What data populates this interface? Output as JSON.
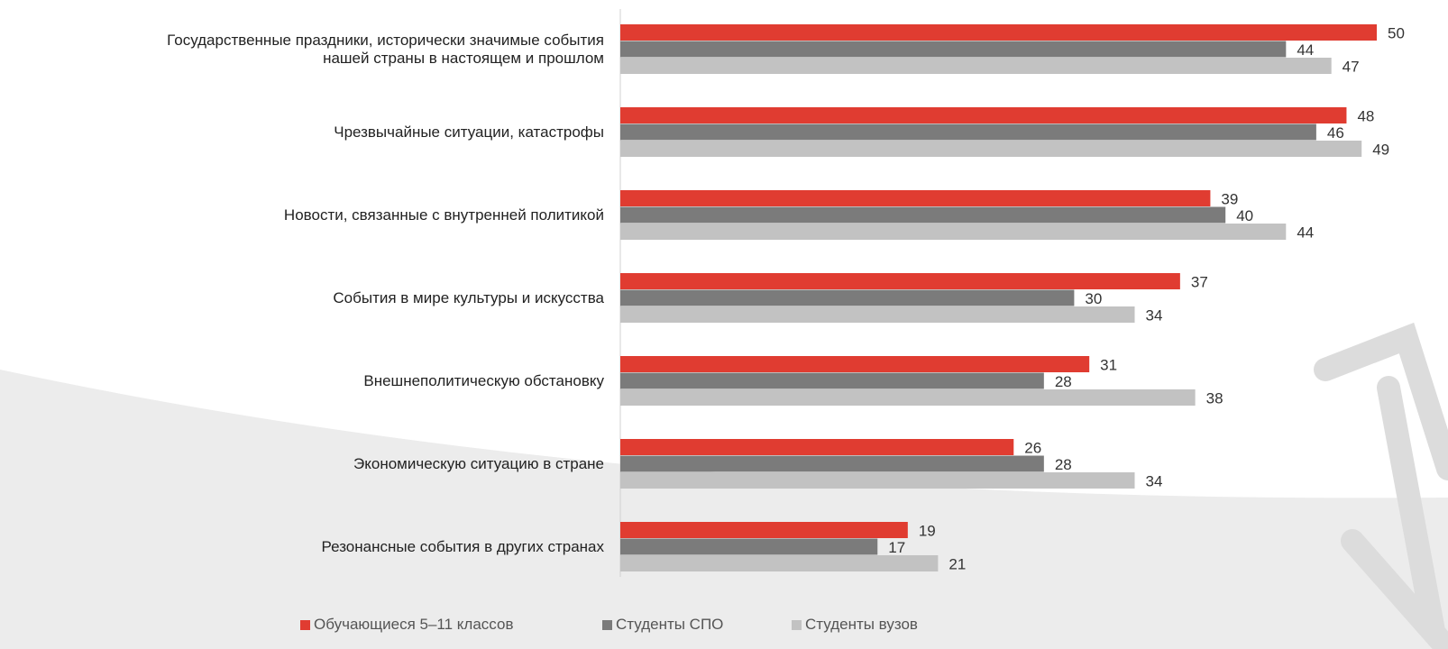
{
  "chart_data": {
    "type": "hbar",
    "categories": [
      "Государственные праздники, исторически значимые события\nнашей страны в настоящем и прошлом",
      "Чрезвычайные ситуации, катастрофы",
      "Новости, связанные с внутренней политикой",
      "События в мире культуры и искусства",
      "Внешнеполитическую обстановку",
      "Экономическую ситуацию в стране",
      "Резонансные события в других странах"
    ],
    "series": [
      {
        "name": "Обучающиеся 5–11 классов",
        "color": "#e03c31",
        "values": [
          50,
          48,
          39,
          37,
          31,
          26,
          19
        ]
      },
      {
        "name": "Студенты СПО",
        "color": "#7b7b7b",
        "values": [
          44,
          46,
          40,
          30,
          28,
          28,
          17
        ]
      },
      {
        "name": "Студенты вузов",
        "color": "#c2c2c2",
        "values": [
          47,
          49,
          44,
          34,
          38,
          34,
          21
        ]
      }
    ],
    "legend": "bottom"
  }
}
